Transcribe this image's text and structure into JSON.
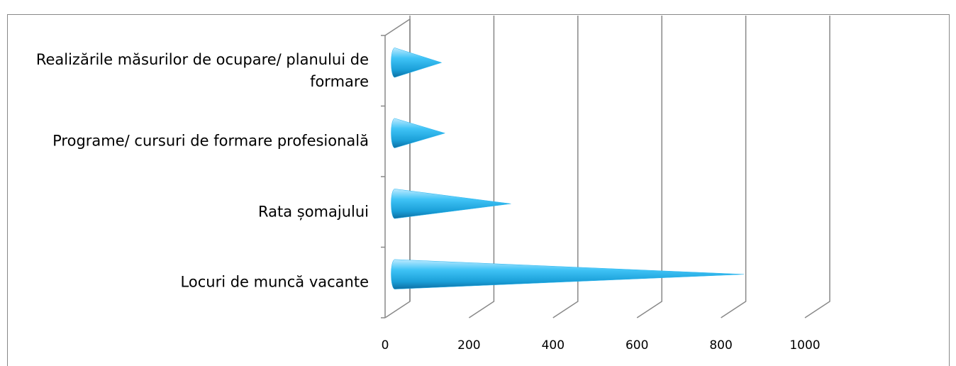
{
  "chart_data": {
    "type": "cone-bar",
    "categories": [
      "Realizările măsurilor de ocupare/ planului de formare",
      "Programe/ cursuri de formare profesională",
      "Rata șomajului",
      "Locuri de muncă vacante"
    ],
    "values": [
      105,
      113,
      270,
      825
    ],
    "color": "#29b6f0",
    "xlim": [
      0,
      1000
    ],
    "xticks": [
      0,
      200,
      400,
      600,
      800,
      1000
    ],
    "grid": true
  }
}
